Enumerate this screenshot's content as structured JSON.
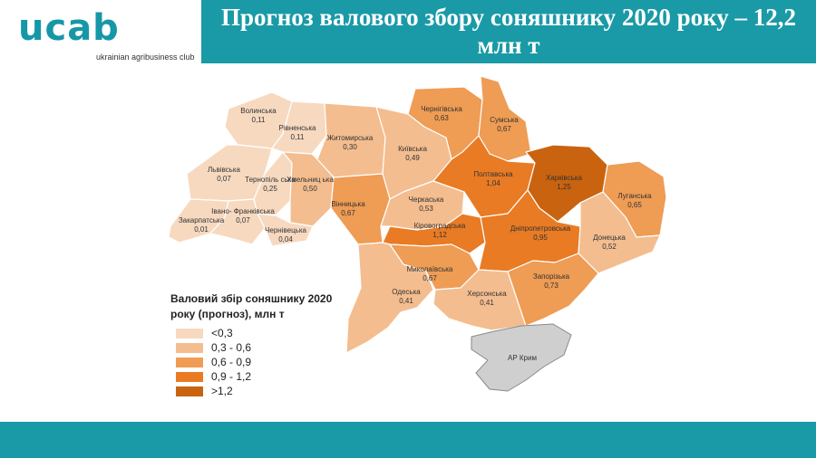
{
  "header": {
    "logo_text": "ucab",
    "logo_subtext": "ukrainian agribusiness club",
    "title": "Прогноз валового збору соняшнику 2020 року – 12,2 млн т"
  },
  "colors": {
    "brand": "#1a9aa6",
    "crimea": "#cfcfcf",
    "scale": [
      "#f7d9c0",
      "#f4bd8f",
      "#ef9c54",
      "#e97b24",
      "#c9630f"
    ]
  },
  "legend": {
    "title": "Валовий збір соняшнику 2020 року (прогноз), млн т",
    "items": [
      {
        "label": "<0,3",
        "color": "#f7d9c0"
      },
      {
        "label": "0,3 - 0,6",
        "color": "#f4bd8f"
      },
      {
        "label": "0,6 - 0,9",
        "color": "#ef9c54"
      },
      {
        "label": "0,9 - 1,2",
        "color": "#e97b24"
      },
      {
        "label": ">1,2",
        "color": "#c9630f"
      }
    ]
  },
  "regions": [
    {
      "id": "volyn",
      "name": "Волинська",
      "value": "0,11",
      "level": 0
    },
    {
      "id": "rivne",
      "name": "Рівненська",
      "value": "0,11",
      "level": 0
    },
    {
      "id": "zhytomyr",
      "name": "Житомирська",
      "value": "0,30",
      "level": 1
    },
    {
      "id": "kyiv",
      "name": "Київська",
      "value": "0,49",
      "level": 1
    },
    {
      "id": "chernihiv",
      "name": "Чернігівська",
      "value": "0,63",
      "level": 2
    },
    {
      "id": "sumy",
      "name": "Сумська",
      "value": "0,67",
      "level": 2
    },
    {
      "id": "lviv",
      "name": "Львівська",
      "value": "0,07",
      "level": 0
    },
    {
      "id": "ternopil",
      "name": "Тернопіль ська",
      "value": "0,25",
      "level": 0
    },
    {
      "id": "khmelnytskyi",
      "name": "Хмельниц ька",
      "value": "0,50",
      "level": 1
    },
    {
      "id": "zakarpattia",
      "name": "Закарпатська",
      "value": "0,01",
      "level": 0
    },
    {
      "id": "ivano_frankivsk",
      "name": "Івано- Франківська",
      "value": "0,07",
      "level": 0
    },
    {
      "id": "chernivtsi",
      "name": "Чернівецька",
      "value": "0,04",
      "level": 0
    },
    {
      "id": "vinnytsia",
      "name": "Вінницька",
      "value": "0,67",
      "level": 2
    },
    {
      "id": "cherkasy",
      "name": "Черкаська",
      "value": "0,53",
      "level": 1
    },
    {
      "id": "poltava",
      "name": "Полтавська",
      "value": "1,04",
      "level": 3
    },
    {
      "id": "kharkiv",
      "name": "Харківська",
      "value": "1,25",
      "level": 4
    },
    {
      "id": "luhansk",
      "name": "Луганська",
      "value": "0,65",
      "level": 2
    },
    {
      "id": "kirovohrad",
      "name": "Кіровоградська",
      "value": "1,12",
      "level": 3
    },
    {
      "id": "dnipro",
      "name": "Дніпропетровська",
      "value": "0,95",
      "level": 3
    },
    {
      "id": "donetsk",
      "name": "Донецька",
      "value": "0,52",
      "level": 1
    },
    {
      "id": "odesa",
      "name": "Одеська",
      "value": "0,41",
      "level": 1
    },
    {
      "id": "mykolaiv",
      "name": "Миколаївська",
      "value": "0,67",
      "level": 2
    },
    {
      "id": "kherson",
      "name": "Херсонська",
      "value": "0,41",
      "level": 1
    },
    {
      "id": "zaporizhzhia",
      "name": "Запорізька",
      "value": "0,73",
      "level": 2
    }
  ],
  "crimea": {
    "name": "АР Крим"
  }
}
